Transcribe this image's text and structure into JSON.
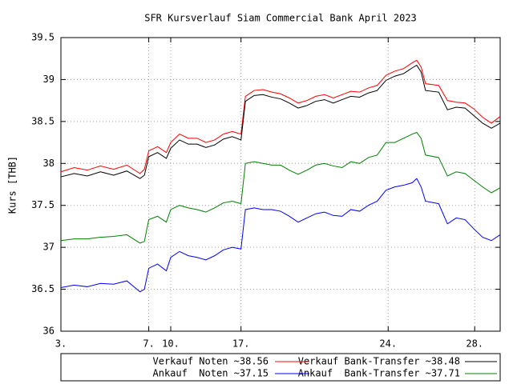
{
  "chart_data": {
    "type": "line",
    "title": "SFR Kursverlauf Siam Commercial Bank April 2023",
    "y_label": "Kurs [THB]",
    "x": [
      0,
      3,
      6,
      9,
      12,
      15,
      18,
      19,
      20,
      22,
      24,
      25,
      27,
      29,
      31,
      33,
      35,
      37,
      39,
      41,
      42,
      44,
      46,
      48,
      50,
      52,
      54,
      56,
      58,
      60,
      62,
      64,
      66,
      68,
      70,
      72,
      74,
      76,
      78,
      80,
      81,
      82,
      83,
      86,
      88,
      90,
      92,
      94,
      96,
      98,
      100
    ],
    "xlim": [
      0,
      100
    ],
    "xticks": [
      {
        "value": 0,
        "label": "3."
      },
      {
        "value": 20,
        "label": "7."
      },
      {
        "value": 25,
        "label": "10."
      },
      {
        "value": 41,
        "label": "17."
      },
      {
        "value": 74.5,
        "label": "24."
      },
      {
        "value": 94.2,
        "label": "28."
      }
    ],
    "ylim": [
      36,
      39.5
    ],
    "yticks": [
      36,
      36.5,
      37,
      37.5,
      38,
      38.5,
      39,
      39.5
    ],
    "grid": true,
    "series": [
      {
        "name": "Verkauf Noten ~38.56",
        "color": "#ff0000",
        "values": [
          37.9,
          37.95,
          37.92,
          37.97,
          37.93,
          37.98,
          37.88,
          37.93,
          38.15,
          38.2,
          38.13,
          38.25,
          38.35,
          38.3,
          38.3,
          38.25,
          38.28,
          38.35,
          38.38,
          38.35,
          38.8,
          38.87,
          38.88,
          38.85,
          38.83,
          38.78,
          38.72,
          38.75,
          38.8,
          38.82,
          38.78,
          38.82,
          38.86,
          38.85,
          38.9,
          38.93,
          39.05,
          39.1,
          39.13,
          39.2,
          39.23,
          39.15,
          38.95,
          38.93,
          38.75,
          38.73,
          38.72,
          38.65,
          38.55,
          38.48,
          38.56
        ]
      },
      {
        "name": "Verkauf Bank-Transfer ~38.48",
        "color": "#000000",
        "values": [
          37.84,
          37.88,
          37.85,
          37.9,
          37.86,
          37.91,
          37.82,
          37.86,
          38.08,
          38.13,
          38.06,
          38.18,
          38.28,
          38.23,
          38.23,
          38.19,
          38.22,
          38.29,
          38.32,
          38.28,
          38.74,
          38.81,
          38.82,
          38.79,
          38.77,
          38.72,
          38.66,
          38.69,
          38.74,
          38.76,
          38.72,
          38.76,
          38.8,
          38.79,
          38.84,
          38.87,
          38.99,
          39.04,
          39.07,
          39.14,
          39.17,
          39.09,
          38.87,
          38.85,
          38.64,
          38.67,
          38.66,
          38.57,
          38.48,
          38.42,
          38.48
        ]
      },
      {
        "name": "Ankauf  Noten ~37.15",
        "color": "#0000ff",
        "values": [
          36.52,
          36.55,
          36.53,
          36.57,
          36.56,
          36.6,
          36.47,
          36.5,
          36.75,
          36.8,
          36.72,
          36.88,
          36.95,
          36.9,
          36.88,
          36.85,
          36.9,
          36.97,
          37.0,
          36.98,
          37.45,
          37.47,
          37.45,
          37.45,
          37.43,
          37.37,
          37.3,
          37.35,
          37.4,
          37.42,
          37.38,
          37.37,
          37.45,
          37.43,
          37.5,
          37.55,
          37.68,
          37.72,
          37.74,
          37.77,
          37.82,
          37.72,
          37.55,
          37.52,
          37.28,
          37.35,
          37.33,
          37.22,
          37.12,
          37.08,
          37.15
        ]
      },
      {
        "name": "Ankauf  Bank-Transfer ~37.71",
        "color": "#008000",
        "values": [
          37.08,
          37.1,
          37.1,
          37.12,
          37.13,
          37.15,
          37.05,
          37.07,
          37.33,
          37.37,
          37.3,
          37.45,
          37.5,
          37.47,
          37.45,
          37.42,
          37.47,
          37.53,
          37.55,
          37.52,
          38.0,
          38.02,
          38.0,
          37.98,
          37.98,
          37.92,
          37.87,
          37.92,
          37.98,
          38.0,
          37.97,
          37.95,
          38.02,
          38.0,
          38.07,
          38.1,
          38.25,
          38.25,
          38.3,
          38.35,
          38.37,
          38.3,
          38.1,
          38.07,
          37.85,
          37.9,
          37.88,
          37.8,
          37.72,
          37.65,
          37.71
        ]
      }
    ]
  }
}
